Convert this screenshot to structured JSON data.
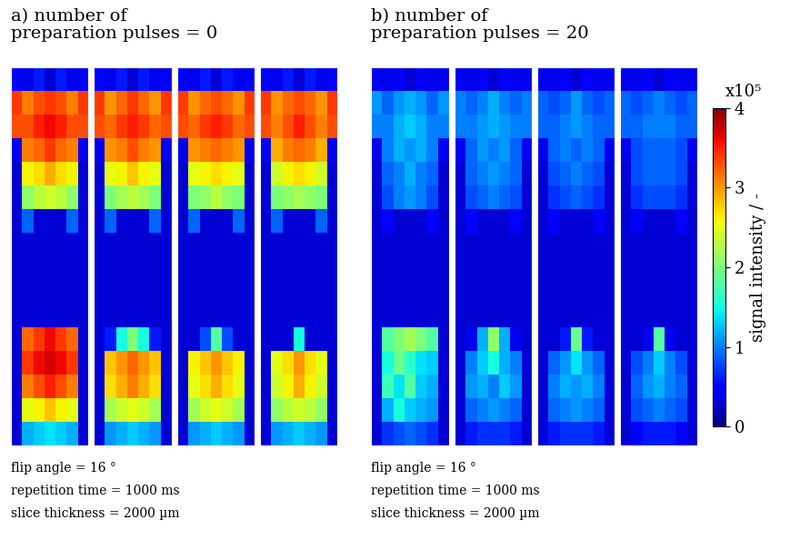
{
  "chart_data": [
    {
      "type": "heatmap",
      "title": "a) number of\npreparation pulses = 0",
      "annotations": [
        "flip angle = 16 °",
        "repetition time = 1000 ms",
        "slice thickness = 2000 µm"
      ],
      "images": [
        [
          [
            0.5,
            0.4,
            0.6,
            0.3,
            0.6,
            0.4,
            0.5
          ],
          [
            3.4,
            3.1,
            3.3,
            3.4,
            3.3,
            3.1,
            3.4
          ],
          [
            3.3,
            3.3,
            3.5,
            3.6,
            3.5,
            3.3,
            3.3
          ],
          [
            0.4,
            3.1,
            3.2,
            3.4,
            3.2,
            3.1,
            0.4
          ],
          [
            0.3,
            2.6,
            2.7,
            2.9,
            2.7,
            2.6,
            0.3
          ],
          [
            0.3,
            2.1,
            2.3,
            2.4,
            2.3,
            2.1,
            0.3
          ],
          [
            0.3,
            0.9,
            0.3,
            0.3,
            0.3,
            0.9,
            0.3
          ],
          [
            0.3,
            0.3,
            0.3,
            0.3,
            0.3,
            0.3,
            0.3
          ],
          [
            0.3,
            0.3,
            0.3,
            0.3,
            0.3,
            0.3,
            0.3
          ],
          [
            0.3,
            0.3,
            0.3,
            0.3,
            0.3,
            0.3,
            0.3
          ],
          [
            0.3,
            0.3,
            0.3,
            0.3,
            0.3,
            0.3,
            0.3
          ],
          [
            0.3,
            3.2,
            3.4,
            3.6,
            3.4,
            3.2,
            0.3
          ],
          [
            0.3,
            3.4,
            3.6,
            3.7,
            3.6,
            3.4,
            0.3
          ],
          [
            0.3,
            3.1,
            3.3,
            3.5,
            3.3,
            3.1,
            0.3
          ],
          [
            0.3,
            2.5,
            2.6,
            2.8,
            2.6,
            2.5,
            0.3
          ],
          [
            0.3,
            1.2,
            1.3,
            1.4,
            1.3,
            1.2,
            0.3
          ]
        ],
        [
          [
            0.5,
            0.4,
            0.6,
            0.3,
            0.6,
            0.4,
            0.5
          ],
          [
            3.4,
            3.0,
            3.2,
            3.4,
            3.2,
            3.0,
            3.4
          ],
          [
            3.3,
            3.2,
            3.4,
            3.5,
            3.4,
            3.2,
            3.3
          ],
          [
            0.4,
            3.0,
            3.1,
            3.3,
            3.1,
            3.0,
            0.4
          ],
          [
            0.3,
            2.5,
            2.6,
            2.8,
            2.6,
            2.5,
            0.3
          ],
          [
            0.3,
            2.0,
            2.2,
            2.3,
            2.2,
            2.0,
            0.3
          ],
          [
            0.3,
            0.9,
            0.3,
            0.3,
            0.3,
            0.9,
            0.3
          ],
          [
            0.3,
            0.3,
            0.3,
            0.3,
            0.3,
            0.3,
            0.3
          ],
          [
            0.3,
            0.3,
            0.3,
            0.3,
            0.3,
            0.3,
            0.3
          ],
          [
            0.3,
            0.3,
            0.3,
            0.3,
            0.3,
            0.3,
            0.3
          ],
          [
            0.3,
            0.3,
            0.3,
            0.3,
            0.3,
            0.3,
            0.3
          ],
          [
            0.3,
            0.6,
            1.5,
            2.0,
            1.5,
            0.6,
            0.3
          ],
          [
            0.3,
            2.8,
            3.0,
            3.2,
            3.0,
            2.8,
            0.3
          ],
          [
            0.3,
            2.7,
            2.9,
            3.1,
            2.9,
            2.7,
            0.3
          ],
          [
            0.3,
            2.2,
            2.4,
            2.5,
            2.4,
            2.2,
            0.3
          ],
          [
            0.3,
            1.1,
            1.2,
            1.3,
            1.2,
            1.1,
            0.3
          ]
        ],
        [
          [
            0.5,
            0.4,
            0.6,
            0.3,
            0.6,
            0.4,
            0.5
          ],
          [
            3.4,
            3.0,
            3.2,
            3.3,
            3.2,
            3.0,
            3.4
          ],
          [
            3.3,
            3.2,
            3.4,
            3.5,
            3.4,
            3.2,
            3.3
          ],
          [
            0.4,
            3.0,
            3.1,
            3.2,
            3.1,
            3.0,
            0.4
          ],
          [
            0.3,
            2.5,
            2.6,
            2.7,
            2.6,
            2.5,
            0.3
          ],
          [
            0.3,
            2.0,
            2.1,
            2.3,
            2.1,
            2.0,
            0.3
          ],
          [
            0.3,
            0.9,
            0.3,
            0.3,
            0.3,
            0.9,
            0.3
          ],
          [
            0.3,
            0.3,
            0.3,
            0.3,
            0.3,
            0.3,
            0.3
          ],
          [
            0.3,
            0.3,
            0.3,
            0.3,
            0.3,
            0.3,
            0.3
          ],
          [
            0.3,
            0.3,
            0.3,
            0.3,
            0.3,
            0.3,
            0.3
          ],
          [
            0.3,
            0.3,
            0.3,
            0.3,
            0.3,
            0.3,
            0.3
          ],
          [
            0.3,
            0.3,
            0.8,
            1.8,
            0.8,
            0.3,
            0.3
          ],
          [
            0.3,
            2.6,
            2.8,
            3.0,
            2.8,
            2.6,
            0.3
          ],
          [
            0.3,
            2.5,
            2.7,
            2.9,
            2.7,
            2.5,
            0.3
          ],
          [
            0.3,
            2.2,
            2.4,
            2.5,
            2.4,
            2.2,
            0.3
          ],
          [
            0.3,
            1.1,
            1.2,
            1.3,
            1.2,
            1.1,
            0.3
          ]
        ],
        [
          [
            0.5,
            0.4,
            0.6,
            0.3,
            0.6,
            0.4,
            0.5
          ],
          [
            3.4,
            3.0,
            3.2,
            3.3,
            3.2,
            3.0,
            3.4
          ],
          [
            3.3,
            3.1,
            3.3,
            3.5,
            3.3,
            3.1,
            3.3
          ],
          [
            0.4,
            2.9,
            3.1,
            3.2,
            3.1,
            2.9,
            0.4
          ],
          [
            0.3,
            2.4,
            2.6,
            2.7,
            2.6,
            2.4,
            0.3
          ],
          [
            0.3,
            2.0,
            2.1,
            2.2,
            2.1,
            2.0,
            0.3
          ],
          [
            0.3,
            0.9,
            0.3,
            0.3,
            0.3,
            0.9,
            0.3
          ],
          [
            0.3,
            0.3,
            0.3,
            0.3,
            0.3,
            0.3,
            0.3
          ],
          [
            0.3,
            0.3,
            0.3,
            0.3,
            0.3,
            0.3,
            0.3
          ],
          [
            0.3,
            0.3,
            0.3,
            0.3,
            0.3,
            0.3,
            0.3
          ],
          [
            0.3,
            0.3,
            0.3,
            0.3,
            0.3,
            0.3,
            0.3
          ],
          [
            0.3,
            0.3,
            0.3,
            1.5,
            0.3,
            0.3,
            0.3
          ],
          [
            0.3,
            2.5,
            2.7,
            3.0,
            2.7,
            2.5,
            0.3
          ],
          [
            0.3,
            2.4,
            2.6,
            2.9,
            2.6,
            2.4,
            0.3
          ],
          [
            0.3,
            2.1,
            2.3,
            2.4,
            2.3,
            2.1,
            0.3
          ],
          [
            0.3,
            1.1,
            1.2,
            1.3,
            1.2,
            1.1,
            0.3
          ]
        ]
      ]
    },
    {
      "type": "heatmap",
      "title": "b) number of\npreparation pulses = 20",
      "annotations": [
        "flip angle = 16 °",
        "repetition time = 1000 ms",
        "slice thickness = 2000 µm"
      ],
      "images": [
        [
          [
            0.4,
            0.4,
            0.5,
            0.3,
            0.5,
            0.4,
            0.4
          ],
          [
            1.1,
            0.9,
            1.1,
            1.2,
            1.1,
            0.9,
            1.1
          ],
          [
            1.0,
            1.0,
            1.2,
            1.3,
            1.2,
            1.0,
            1.0
          ],
          [
            0.4,
            1.0,
            1.2,
            1.1,
            1.2,
            1.0,
            0.4
          ],
          [
            0.3,
            0.9,
            1.0,
            1.2,
            1.0,
            0.9,
            0.3
          ],
          [
            0.3,
            0.8,
            1.0,
            1.1,
            1.0,
            0.8,
            0.3
          ],
          [
            0.3,
            0.5,
            0.3,
            0.3,
            0.3,
            0.5,
            0.3
          ],
          [
            0.3,
            0.3,
            0.3,
            0.3,
            0.3,
            0.3,
            0.3
          ],
          [
            0.3,
            0.3,
            0.3,
            0.3,
            0.3,
            0.3,
            0.3
          ],
          [
            0.3,
            0.3,
            0.3,
            0.3,
            0.3,
            0.3,
            0.3
          ],
          [
            0.3,
            0.3,
            0.3,
            0.3,
            0.3,
            0.3,
            0.3
          ],
          [
            0.3,
            1.8,
            2.0,
            2.2,
            2.0,
            1.8,
            0.3
          ],
          [
            0.3,
            1.5,
            1.9,
            1.6,
            1.4,
            1.3,
            0.3
          ],
          [
            0.3,
            1.7,
            1.4,
            1.8,
            1.3,
            1.2,
            0.3
          ],
          [
            0.3,
            1.2,
            1.5,
            1.3,
            1.2,
            1.1,
            0.3
          ],
          [
            0.3,
            0.7,
            0.8,
            0.9,
            0.8,
            0.7,
            0.3
          ]
        ],
        [
          [
            0.4,
            0.4,
            0.5,
            0.3,
            0.5,
            0.4,
            0.4
          ],
          [
            1.0,
            0.9,
            1.0,
            1.2,
            1.0,
            0.9,
            1.0
          ],
          [
            1.0,
            1.0,
            1.1,
            1.2,
            1.1,
            1.0,
            1.0
          ],
          [
            0.4,
            0.9,
            1.1,
            1.0,
            1.1,
            0.9,
            0.4
          ],
          [
            0.3,
            0.9,
            1.0,
            1.1,
            1.0,
            0.9,
            0.3
          ],
          [
            0.3,
            0.8,
            0.9,
            1.0,
            0.9,
            0.8,
            0.3
          ],
          [
            0.3,
            0.5,
            0.3,
            0.3,
            0.3,
            0.5,
            0.3
          ],
          [
            0.3,
            0.3,
            0.3,
            0.3,
            0.3,
            0.3,
            0.3
          ],
          [
            0.3,
            0.3,
            0.3,
            0.3,
            0.3,
            0.3,
            0.3
          ],
          [
            0.3,
            0.3,
            0.3,
            0.3,
            0.3,
            0.3,
            0.3
          ],
          [
            0.3,
            0.3,
            0.3,
            0.3,
            0.3,
            0.3,
            0.3
          ],
          [
            0.3,
            0.4,
            1.2,
            2.1,
            1.2,
            0.4,
            0.3
          ],
          [
            0.3,
            1.0,
            1.3,
            1.5,
            1.2,
            1.0,
            0.3
          ],
          [
            0.3,
            1.1,
            1.2,
            1.0,
            1.3,
            1.1,
            0.3
          ],
          [
            0.3,
            0.9,
            1.0,
            1.1,
            1.0,
            0.9,
            0.3
          ],
          [
            0.3,
            0.6,
            0.7,
            0.7,
            0.7,
            0.6,
            0.3
          ]
        ],
        [
          [
            0.4,
            0.4,
            0.5,
            0.3,
            0.5,
            0.4,
            0.4
          ],
          [
            0.9,
            0.8,
            0.9,
            1.1,
            0.9,
            0.8,
            0.9
          ],
          [
            0.9,
            0.9,
            1.0,
            1.1,
            1.0,
            0.9,
            0.9
          ],
          [
            0.4,
            0.9,
            1.0,
            0.9,
            1.0,
            0.9,
            0.4
          ],
          [
            0.3,
            0.8,
            0.9,
            1.0,
            0.9,
            0.8,
            0.3
          ],
          [
            0.3,
            0.7,
            0.8,
            0.9,
            0.8,
            0.7,
            0.3
          ],
          [
            0.3,
            0.5,
            0.3,
            0.3,
            0.3,
            0.5,
            0.3
          ],
          [
            0.3,
            0.3,
            0.3,
            0.3,
            0.3,
            0.3,
            0.3
          ],
          [
            0.3,
            0.3,
            0.3,
            0.3,
            0.3,
            0.3,
            0.3
          ],
          [
            0.3,
            0.3,
            0.3,
            0.3,
            0.3,
            0.3,
            0.3
          ],
          [
            0.3,
            0.3,
            0.3,
            0.3,
            0.3,
            0.3,
            0.3
          ],
          [
            0.3,
            0.3,
            0.6,
            1.9,
            0.6,
            0.3,
            0.3
          ],
          [
            0.3,
            0.9,
            1.1,
            1.4,
            1.1,
            0.9,
            0.3
          ],
          [
            0.3,
            1.0,
            1.2,
            1.1,
            1.2,
            1.0,
            0.3
          ],
          [
            0.3,
            0.9,
            1.0,
            1.1,
            1.0,
            0.9,
            0.3
          ],
          [
            0.3,
            0.6,
            0.7,
            0.7,
            0.7,
            0.6,
            0.3
          ]
        ],
        [
          [
            0.4,
            0.4,
            0.5,
            0.3,
            0.5,
            0.4,
            0.4
          ],
          [
            0.9,
            0.8,
            0.9,
            1.0,
            0.9,
            0.8,
            0.9
          ],
          [
            0.9,
            0.9,
            1.0,
            1.0,
            1.0,
            0.9,
            0.9
          ],
          [
            0.4,
            0.8,
            0.9,
            0.9,
            0.9,
            0.8,
            0.4
          ],
          [
            0.3,
            0.8,
            0.9,
            0.9,
            0.9,
            0.8,
            0.3
          ],
          [
            0.3,
            0.7,
            0.8,
            0.8,
            0.8,
            0.7,
            0.3
          ],
          [
            0.3,
            0.5,
            0.3,
            0.3,
            0.3,
            0.5,
            0.3
          ],
          [
            0.3,
            0.3,
            0.3,
            0.3,
            0.3,
            0.3,
            0.3
          ],
          [
            0.3,
            0.3,
            0.3,
            0.3,
            0.3,
            0.3,
            0.3
          ],
          [
            0.3,
            0.3,
            0.3,
            0.3,
            0.3,
            0.3,
            0.3
          ],
          [
            0.3,
            0.3,
            0.3,
            0.3,
            0.3,
            0.3,
            0.3
          ],
          [
            0.3,
            0.3,
            0.4,
            1.8,
            0.4,
            0.3,
            0.3
          ],
          [
            0.3,
            0.8,
            1.0,
            1.3,
            1.0,
            0.8,
            0.3
          ],
          [
            0.3,
            0.9,
            1.1,
            1.2,
            1.0,
            0.9,
            0.3
          ],
          [
            0.3,
            0.8,
            0.9,
            1.0,
            0.9,
            0.8,
            0.3
          ],
          [
            0.3,
            0.5,
            0.6,
            0.6,
            0.6,
            0.5,
            0.3
          ]
        ]
      ]
    }
  ],
  "colorbar": {
    "label": "signal intensity / -",
    "multiplier": "x10⁵",
    "lim": [
      0,
      4
    ],
    "ticks": [
      0,
      1,
      2,
      3,
      4
    ]
  }
}
